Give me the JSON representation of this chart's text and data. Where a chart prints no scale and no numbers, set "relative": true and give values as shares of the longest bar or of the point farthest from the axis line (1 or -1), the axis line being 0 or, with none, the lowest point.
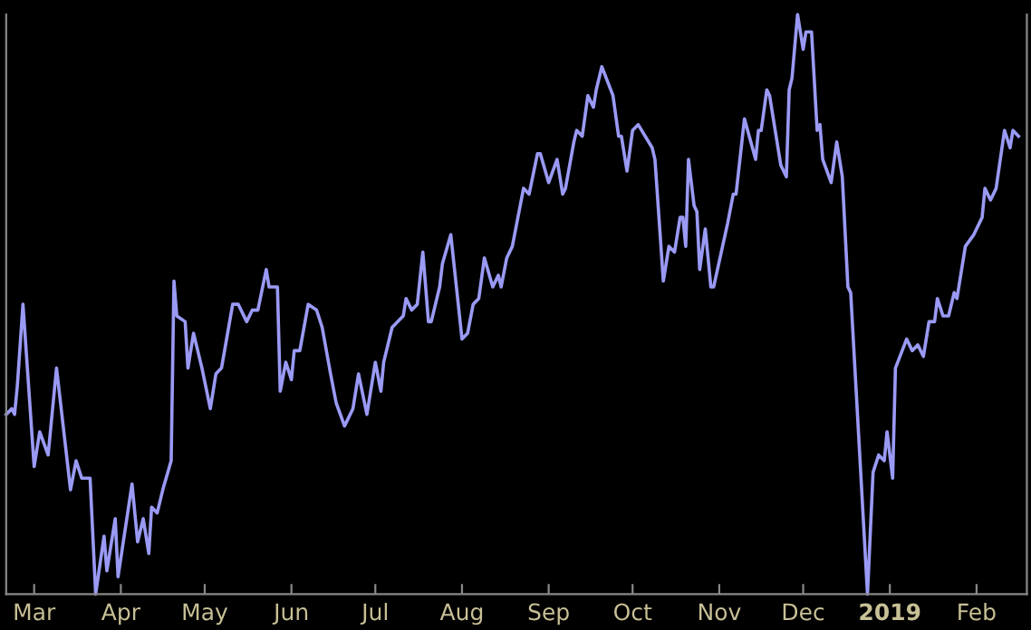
{
  "chart_data": {
    "type": "line",
    "relative": true,
    "tick_labels": "x",
    "grid": false,
    "legend": false,
    "marker": "none",
    "line_style": "solid",
    "xlim": [
      "2018-02-19",
      "2019-02-19"
    ],
    "xticks": [
      {
        "value": "2018-03-01",
        "label": "Mar"
      },
      {
        "value": "2018-04-01",
        "label": "Apr"
      },
      {
        "value": "2018-05-01",
        "label": "May"
      },
      {
        "value": "2018-06-01",
        "label": "Jun"
      },
      {
        "value": "2018-07-01",
        "label": "Jul"
      },
      {
        "value": "2018-08-01",
        "label": "Aug"
      },
      {
        "value": "2018-09-01",
        "label": "Sep"
      },
      {
        "value": "2018-10-01",
        "label": "Oct"
      },
      {
        "value": "2018-11-01",
        "label": "Nov"
      },
      {
        "value": "2018-12-01",
        "label": "Dec"
      },
      {
        "value": "2019-01-01",
        "label": "2019"
      },
      {
        "value": "2019-02-01",
        "label": "Feb"
      }
    ],
    "x": [
      "2018-02-19",
      "2018-02-21",
      "2018-02-22",
      "2018-02-23",
      "2018-02-25",
      "2018-03-01",
      "2018-03-03",
      "2018-03-06",
      "2018-03-09",
      "2018-03-14",
      "2018-03-16",
      "2018-03-18",
      "2018-03-21",
      "2018-03-23",
      "2018-03-26",
      "2018-03-27",
      "2018-03-30",
      "2018-03-31",
      "2018-04-05",
      "2018-04-07",
      "2018-04-09",
      "2018-04-11",
      "2018-04-12",
      "2018-04-14",
      "2018-04-16",
      "2018-04-19",
      "2018-04-20",
      "2018-04-21",
      "2018-04-24",
      "2018-04-25",
      "2018-04-27",
      "2018-04-30",
      "2018-05-03",
      "2018-05-05",
      "2018-05-07",
      "2018-05-11",
      "2018-05-13",
      "2018-05-16",
      "2018-05-18",
      "2018-05-20",
      "2018-05-23",
      "2018-05-24",
      "2018-05-27",
      "2018-05-28",
      "2018-05-30",
      "2018-06-01",
      "2018-06-02",
      "2018-06-04",
      "2018-06-07",
      "2018-06-10",
      "2018-06-12",
      "2018-06-15",
      "2018-06-17",
      "2018-06-20",
      "2018-06-23",
      "2018-06-25",
      "2018-06-28",
      "2018-07-01",
      "2018-07-03",
      "2018-07-04",
      "2018-07-07",
      "2018-07-11",
      "2018-07-12",
      "2018-07-14",
      "2018-07-16",
      "2018-07-18",
      "2018-07-20",
      "2018-07-21",
      "2018-07-24",
      "2018-07-25",
      "2018-07-28",
      "2018-08-01",
      "2018-08-03",
      "2018-08-05",
      "2018-08-07",
      "2018-08-09",
      "2018-08-12",
      "2018-08-14",
      "2018-08-15",
      "2018-08-17",
      "2018-08-19",
      "2018-08-23",
      "2018-08-25",
      "2018-08-28",
      "2018-08-29",
      "2018-09-01",
      "2018-09-04",
      "2018-09-06",
      "2018-09-07",
      "2018-09-10",
      "2018-09-11",
      "2018-09-13",
      "2018-09-15",
      "2018-09-17",
      "2018-09-18",
      "2018-09-20",
      "2018-09-24",
      "2018-09-26",
      "2018-09-27",
      "2018-09-29",
      "2018-10-01",
      "2018-10-03",
      "2018-10-08",
      "2018-10-09",
      "2018-10-12",
      "2018-10-14",
      "2018-10-16",
      "2018-10-18",
      "2018-10-19",
      "2018-10-20",
      "2018-10-21",
      "2018-10-23",
      "2018-10-24",
      "2018-10-25",
      "2018-10-27",
      "2018-10-29",
      "2018-10-30",
      "2018-11-04",
      "2018-11-06",
      "2018-11-07",
      "2018-11-10",
      "2018-11-14",
      "2018-11-15",
      "2018-11-16",
      "2018-11-18",
      "2018-11-19",
      "2018-11-23",
      "2018-11-25",
      "2018-11-26",
      "2018-11-27",
      "2018-11-29",
      "2018-12-01",
      "2018-12-02",
      "2018-12-04",
      "2018-12-06",
      "2018-12-07",
      "2018-12-08",
      "2018-12-11",
      "2018-12-13",
      "2018-12-15",
      "2018-12-17",
      "2018-12-18",
      "2018-12-24",
      "2018-12-26",
      "2018-12-28",
      "2018-12-30",
      "2018-12-31",
      "2019-01-02",
      "2019-01-03",
      "2019-01-07",
      "2019-01-09",
      "2019-01-11",
      "2019-01-13",
      "2019-01-15",
      "2019-01-17",
      "2019-01-18",
      "2019-01-20",
      "2019-01-22",
      "2019-01-24",
      "2019-01-25",
      "2019-01-28",
      "2019-01-31",
      "2019-02-03",
      "2019-02-04",
      "2019-02-06",
      "2019-02-08",
      "2019-02-11",
      "2019-02-13",
      "2019-02-14",
      "2019-02-16"
    ],
    "series": [
      {
        "color": "#9a9af5",
        "values": [
          0.31,
          0.32,
          0.31,
          0.36,
          0.5,
          0.22,
          0.28,
          0.24,
          0.39,
          0.18,
          0.23,
          0.2,
          0.2,
          0.0,
          0.1,
          0.04,
          0.13,
          0.03,
          0.19,
          0.09,
          0.13,
          0.07,
          0.15,
          0.14,
          0.18,
          0.23,
          0.54,
          0.48,
          0.47,
          0.39,
          0.45,
          0.39,
          0.32,
          0.38,
          0.39,
          0.5,
          0.5,
          0.47,
          0.49,
          0.49,
          0.56,
          0.53,
          0.53,
          0.35,
          0.4,
          0.37,
          0.42,
          0.42,
          0.5,
          0.49,
          0.46,
          0.38,
          0.33,
          0.29,
          0.32,
          0.38,
          0.31,
          0.4,
          0.35,
          0.4,
          0.46,
          0.48,
          0.51,
          0.49,
          0.5,
          0.59,
          0.47,
          0.47,
          0.53,
          0.57,
          0.62,
          0.44,
          0.45,
          0.5,
          0.51,
          0.58,
          0.53,
          0.55,
          0.53,
          0.58,
          0.6,
          0.7,
          0.69,
          0.76,
          0.76,
          0.71,
          0.75,
          0.69,
          0.7,
          0.78,
          0.8,
          0.79,
          0.86,
          0.84,
          0.87,
          0.91,
          0.86,
          0.79,
          0.79,
          0.73,
          0.8,
          0.81,
          0.77,
          0.75,
          0.54,
          0.6,
          0.59,
          0.65,
          0.65,
          0.6,
          0.75,
          0.67,
          0.66,
          0.56,
          0.63,
          0.53,
          0.53,
          0.64,
          0.69,
          0.69,
          0.82,
          0.75,
          0.8,
          0.8,
          0.87,
          0.86,
          0.74,
          0.72,
          0.87,
          0.89,
          1.0,
          0.94,
          0.97,
          0.97,
          0.8,
          0.81,
          0.75,
          0.71,
          0.78,
          0.72,
          0.53,
          0.52,
          0.0,
          0.21,
          0.24,
          0.23,
          0.28,
          0.2,
          0.39,
          0.44,
          0.42,
          0.43,
          0.41,
          0.47,
          0.47,
          0.51,
          0.48,
          0.48,
          0.52,
          0.51,
          0.6,
          0.62,
          0.65,
          0.7,
          0.68,
          0.7,
          0.8,
          0.77,
          0.8,
          0.79
        ]
      }
    ]
  }
}
